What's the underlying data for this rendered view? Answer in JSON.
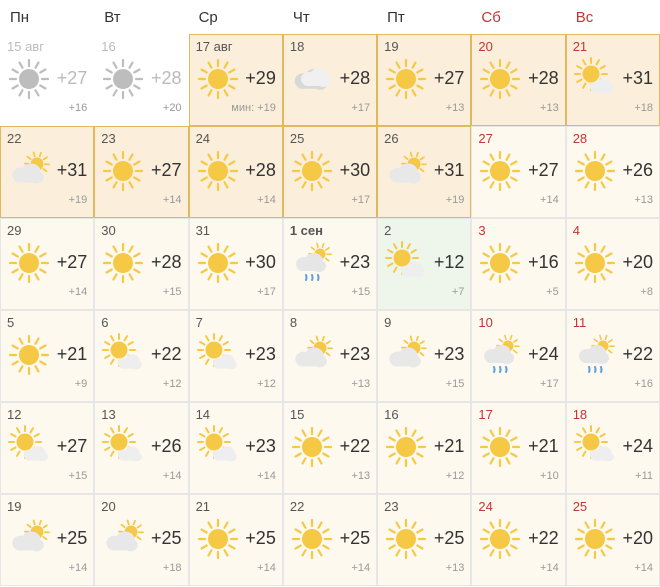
{
  "headers": [
    "Пн",
    "Вт",
    "Ср",
    "Чт",
    "Пт",
    "Сб",
    "Вс"
  ],
  "colors": {
    "weekday_text": "#333333",
    "weekend_text": "#c43535",
    "past_text": "#bbbbbb",
    "hi_text": "#333333",
    "lo_text": "#999999",
    "bg_white": "#ffffff",
    "bg_cream": "#fdf9ee",
    "bg_peach": "#fbefdc",
    "bg_mint": "#eef6ec",
    "frame_orange": "#e0b85e",
    "frame_gray": "#e6e6e6"
  },
  "cells": [
    {
      "date": "15 авг",
      "icon": "sun",
      "hi": "+27",
      "lo": "+16",
      "weekend": false,
      "past": true,
      "bg": "white",
      "frame": null,
      "min_label": false
    },
    {
      "date": "16",
      "icon": "sun",
      "hi": "+28",
      "lo": "+20",
      "weekend": false,
      "past": true,
      "bg": "white",
      "frame": null,
      "min_label": false
    },
    {
      "date": "17 авг",
      "icon": "sun",
      "hi": "+29",
      "lo": "мин: +19",
      "weekend": false,
      "past": false,
      "bg": "peach",
      "frame": "orange",
      "min_label": true
    },
    {
      "date": "18",
      "icon": "cloud",
      "hi": "+28",
      "lo": "+17",
      "weekend": false,
      "past": false,
      "bg": "peach",
      "frame": "orange",
      "min_label": false
    },
    {
      "date": "19",
      "icon": "sun",
      "hi": "+27",
      "lo": "+13",
      "weekend": false,
      "past": false,
      "bg": "peach",
      "frame": "orange",
      "min_label": false
    },
    {
      "date": "20",
      "icon": "sun",
      "hi": "+28",
      "lo": "+13",
      "weekend": true,
      "past": false,
      "bg": "peach",
      "frame": "orange",
      "min_label": false
    },
    {
      "date": "21",
      "icon": "suncloud",
      "hi": "+31",
      "lo": "+18",
      "weekend": true,
      "past": false,
      "bg": "peach",
      "frame": "orange",
      "min_label": false
    },
    {
      "date": "22",
      "icon": "cloudsun",
      "hi": "+31",
      "lo": "+19",
      "weekend": false,
      "past": false,
      "bg": "peach",
      "frame": "orange",
      "min_label": false
    },
    {
      "date": "23",
      "icon": "sun",
      "hi": "+27",
      "lo": "+14",
      "weekend": false,
      "past": false,
      "bg": "peach",
      "frame": "orange",
      "min_label": false
    },
    {
      "date": "24",
      "icon": "sun",
      "hi": "+28",
      "lo": "+14",
      "weekend": false,
      "past": false,
      "bg": "peach",
      "frame": "orange",
      "min_label": false
    },
    {
      "date": "25",
      "icon": "sun",
      "hi": "+30",
      "lo": "+17",
      "weekend": false,
      "past": false,
      "bg": "peach",
      "frame": "orange",
      "min_label": false
    },
    {
      "date": "26",
      "icon": "cloudsun",
      "hi": "+31",
      "lo": "+19",
      "weekend": false,
      "past": false,
      "bg": "peach",
      "frame": "orange",
      "min_label": false
    },
    {
      "date": "27",
      "icon": "sun",
      "hi": "+27",
      "lo": "+14",
      "weekend": true,
      "past": false,
      "bg": "cream",
      "frame": "gray",
      "min_label": false
    },
    {
      "date": "28",
      "icon": "sun",
      "hi": "+26",
      "lo": "+13",
      "weekend": true,
      "past": false,
      "bg": "cream",
      "frame": "gray",
      "min_label": false
    },
    {
      "date": "29",
      "icon": "sun",
      "hi": "+27",
      "lo": "+14",
      "weekend": false,
      "past": false,
      "bg": "cream",
      "frame": "gray",
      "min_label": false
    },
    {
      "date": "30",
      "icon": "sun",
      "hi": "+28",
      "lo": "+15",
      "weekend": false,
      "past": false,
      "bg": "cream",
      "frame": "gray",
      "min_label": false
    },
    {
      "date": "31",
      "icon": "sun",
      "hi": "+30",
      "lo": "+17",
      "weekend": false,
      "past": false,
      "bg": "cream",
      "frame": "gray",
      "min_label": false
    },
    {
      "date": "1 сен",
      "icon": "rain",
      "hi": "+23",
      "lo": "+15",
      "weekend": false,
      "past": false,
      "bg": "cream",
      "frame": "gray",
      "min_label": false,
      "bold": true
    },
    {
      "date": "2",
      "icon": "suncloud",
      "hi": "+12",
      "lo": "+7",
      "weekend": false,
      "past": false,
      "bg": "mint",
      "frame": "gray",
      "min_label": false
    },
    {
      "date": "3",
      "icon": "sun",
      "hi": "+16",
      "lo": "+5",
      "weekend": true,
      "past": false,
      "bg": "cream",
      "frame": "gray",
      "min_label": false
    },
    {
      "date": "4",
      "icon": "sun",
      "hi": "+20",
      "lo": "+8",
      "weekend": true,
      "past": false,
      "bg": "cream",
      "frame": "gray",
      "min_label": false
    },
    {
      "date": "5",
      "icon": "sun",
      "hi": "+21",
      "lo": "+9",
      "weekend": false,
      "past": false,
      "bg": "cream",
      "frame": "gray",
      "min_label": false
    },
    {
      "date": "6",
      "icon": "suncloud",
      "hi": "+22",
      "lo": "+12",
      "weekend": false,
      "past": false,
      "bg": "cream",
      "frame": "gray",
      "min_label": false
    },
    {
      "date": "7",
      "icon": "suncloud",
      "hi": "+23",
      "lo": "+12",
      "weekend": false,
      "past": false,
      "bg": "cream",
      "frame": "gray",
      "min_label": false
    },
    {
      "date": "8",
      "icon": "cloudsun",
      "hi": "+23",
      "lo": "+13",
      "weekend": false,
      "past": false,
      "bg": "cream",
      "frame": "gray",
      "min_label": false
    },
    {
      "date": "9",
      "icon": "cloudsun",
      "hi": "+23",
      "lo": "+15",
      "weekend": false,
      "past": false,
      "bg": "cream",
      "frame": "gray",
      "min_label": false
    },
    {
      "date": "10",
      "icon": "rain",
      "hi": "+24",
      "lo": "+17",
      "weekend": true,
      "past": false,
      "bg": "cream",
      "frame": "gray",
      "min_label": false
    },
    {
      "date": "11",
      "icon": "rain",
      "hi": "+22",
      "lo": "+16",
      "weekend": true,
      "past": false,
      "bg": "cream",
      "frame": "gray",
      "min_label": false
    },
    {
      "date": "12",
      "icon": "suncloud",
      "hi": "+27",
      "lo": "+15",
      "weekend": false,
      "past": false,
      "bg": "cream",
      "frame": "gray",
      "min_label": false
    },
    {
      "date": "13",
      "icon": "suncloud",
      "hi": "+26",
      "lo": "+14",
      "weekend": false,
      "past": false,
      "bg": "cream",
      "frame": "gray",
      "min_label": false
    },
    {
      "date": "14",
      "icon": "suncloud",
      "hi": "+23",
      "lo": "+14",
      "weekend": false,
      "past": false,
      "bg": "cream",
      "frame": "gray",
      "min_label": false
    },
    {
      "date": "15",
      "icon": "sun",
      "hi": "+22",
      "lo": "+13",
      "weekend": false,
      "past": false,
      "bg": "cream",
      "frame": "gray",
      "min_label": false
    },
    {
      "date": "16",
      "icon": "sun",
      "hi": "+21",
      "lo": "+12",
      "weekend": false,
      "past": false,
      "bg": "cream",
      "frame": "gray",
      "min_label": false
    },
    {
      "date": "17",
      "icon": "sun",
      "hi": "+21",
      "lo": "+10",
      "weekend": true,
      "past": false,
      "bg": "cream",
      "frame": "gray",
      "min_label": false
    },
    {
      "date": "18",
      "icon": "suncloud",
      "hi": "+24",
      "lo": "+11",
      "weekend": true,
      "past": false,
      "bg": "cream",
      "frame": "gray",
      "min_label": false
    },
    {
      "date": "19",
      "icon": "cloudsun",
      "hi": "+25",
      "lo": "+14",
      "weekend": false,
      "past": false,
      "bg": "cream",
      "frame": "gray",
      "min_label": false
    },
    {
      "date": "20",
      "icon": "cloudsun",
      "hi": "+25",
      "lo": "+18",
      "weekend": false,
      "past": false,
      "bg": "cream",
      "frame": "gray",
      "min_label": false
    },
    {
      "date": "21",
      "icon": "sun",
      "hi": "+25",
      "lo": "+14",
      "weekend": false,
      "past": false,
      "bg": "cream",
      "frame": "gray",
      "min_label": false
    },
    {
      "date": "22",
      "icon": "sun",
      "hi": "+25",
      "lo": "+14",
      "weekend": false,
      "past": false,
      "bg": "cream",
      "frame": "gray",
      "min_label": false
    },
    {
      "date": "23",
      "icon": "sun",
      "hi": "+25",
      "lo": "+13",
      "weekend": false,
      "past": false,
      "bg": "cream",
      "frame": "gray",
      "min_label": false
    },
    {
      "date": "24",
      "icon": "sun",
      "hi": "+22",
      "lo": "+14",
      "weekend": true,
      "past": false,
      "bg": "cream",
      "frame": "gray",
      "min_label": false
    },
    {
      "date": "25",
      "icon": "sun",
      "hi": "+20",
      "lo": "+14",
      "weekend": true,
      "past": false,
      "bg": "cream",
      "frame": "gray",
      "min_label": false
    }
  ]
}
